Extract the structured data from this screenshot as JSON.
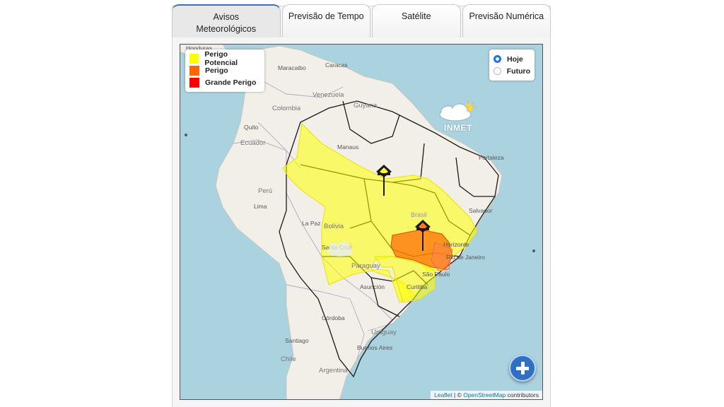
{
  "tabs": [
    {
      "label": "Avisos Meteorológicos",
      "active": true
    },
    {
      "label": "Previsão de Tempo",
      "active": false
    },
    {
      "label": "Satélite",
      "active": false
    },
    {
      "label": "Previsão Numérica",
      "active": false
    }
  ],
  "legend": {
    "items": [
      {
        "label": "Perigo Potencial",
        "color": "#ffff00"
      },
      {
        "label": "Perigo",
        "color": "#ff6600"
      },
      {
        "label": "Grande Perigo",
        "color": "#ff0000"
      }
    ]
  },
  "period": {
    "options": [
      {
        "label": "Hoje",
        "selected": true
      },
      {
        "label": "Futuro",
        "selected": false
      }
    ]
  },
  "logo": {
    "text": "INMET"
  },
  "attribution": {
    "leaflet": "Leaflet",
    "separator": " | © ",
    "osm": "OpenStreetMap",
    "suffix": " contributors"
  },
  "map_labels": {
    "honduras": "Honduras",
    "maracaibo": "Maracaibo",
    "caracas": "Caracas",
    "venezuela": "Venezuela",
    "colombia": "Colombia",
    "guyana": "Guyana",
    "quito": "Quito",
    "ecuador": "Ecuador",
    "manaus": "Manaus",
    "fortaleza": "Fortaleza",
    "peru": "Perú",
    "lima": "Lima",
    "brasil": "Brasil",
    "salvador": "Salvador",
    "la_paz": "La Paz",
    "bolivia": "Bolivia",
    "santa_cruz": "Santa Cruz",
    "horizonte": "Horizonte",
    "rio": "Rio de Janeiro",
    "paraguay": "Paraguay",
    "sao_paulo": "São Paulo",
    "asuncion": "Asunción",
    "curitiba": "Curitiba",
    "cordoba": "Córdoba",
    "uruguay": "Uruguay",
    "santiago": "Santiago",
    "buenos_aires": "Buenos Aires",
    "chile": "Chile",
    "argentina": "Argentina"
  },
  "colors": {
    "water": "#aad3df",
    "land": "#f2efe9",
    "yellow_zone": "#ffff66",
    "orange_zone": "#ff7a29",
    "accent": "#2f6fc4"
  }
}
